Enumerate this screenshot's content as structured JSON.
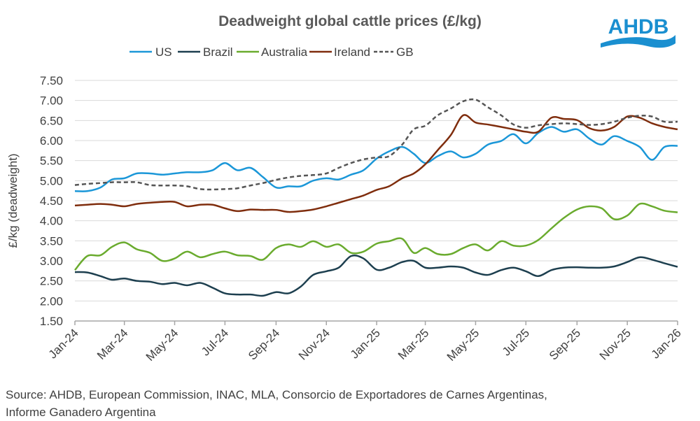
{
  "chart_data": {
    "type": "line",
    "title": "Deadweight global cattle prices (£/kg)",
    "ylabel": "£/kg (deadweight)",
    "xlabel": "",
    "ylim": [
      1.5,
      7.5
    ],
    "yticks": [
      "1.50",
      "2.00",
      "2.50",
      "3.00",
      "3.50",
      "4.00",
      "4.50",
      "5.00",
      "5.50",
      "6.00",
      "6.50",
      "7.00",
      "7.50"
    ],
    "xticks": [
      "Jan-24",
      "Mar-24",
      "May-24",
      "Jul-24",
      "Sep-24",
      "Nov-24",
      "Jan-25",
      "Mar-25",
      "May-25",
      "Jul-25",
      "Sep-25",
      "Nov-25",
      "Jan-26"
    ],
    "xtick_dates": [
      "2024-01-01",
      "2024-03-01",
      "2024-05-01",
      "2024-07-01",
      "2024-09-01",
      "2024-11-01",
      "2025-01-01",
      "2025-03-01",
      "2025-05-01",
      "2025-07-01",
      "2025-09-01",
      "2025-11-01",
      "2026-01-01"
    ],
    "grid": "horizontal",
    "legend_position": "top",
    "x": [
      "2024-01-01",
      "2024-01-16",
      "2024-02-01",
      "2024-02-15",
      "2024-03-01",
      "2024-03-16",
      "2024-04-01",
      "2024-04-16",
      "2024-05-01",
      "2024-05-16",
      "2024-06-01",
      "2024-06-16",
      "2024-07-01",
      "2024-07-16",
      "2024-08-01",
      "2024-08-16",
      "2024-09-01",
      "2024-09-16",
      "2024-10-01",
      "2024-10-16",
      "2024-11-01",
      "2024-11-16",
      "2024-12-01",
      "2024-12-16",
      "2025-01-01",
      "2025-01-16",
      "2025-02-01",
      "2025-02-15",
      "2025-03-01",
      "2025-03-16",
      "2025-04-01",
      "2025-04-16",
      "2025-05-01",
      "2025-05-16",
      "2025-06-01",
      "2025-06-16",
      "2025-07-01",
      "2025-07-16",
      "2025-08-01",
      "2025-08-16",
      "2025-09-01",
      "2025-09-16",
      "2025-10-01",
      "2025-10-16",
      "2025-11-01",
      "2025-11-16",
      "2025-12-01",
      "2025-12-16",
      "2026-01-01"
    ],
    "series": [
      {
        "name": "US",
        "color": "#1b97d8",
        "dash": false,
        "values": [
          4.74,
          4.74,
          4.83,
          5.03,
          5.06,
          5.18,
          5.18,
          5.15,
          5.18,
          5.21,
          5.21,
          5.26,
          5.44,
          5.26,
          5.32,
          5.09,
          4.83,
          4.86,
          4.86,
          5.0,
          5.06,
          5.03,
          5.15,
          5.26,
          5.55,
          5.73,
          5.84,
          5.67,
          5.44,
          5.61,
          5.73,
          5.58,
          5.67,
          5.9,
          5.99,
          6.16,
          5.93,
          6.19,
          6.34,
          6.22,
          6.28,
          6.05,
          5.9,
          6.11,
          5.99,
          5.84,
          5.52,
          5.84,
          5.87
        ]
      },
      {
        "name": "Brazil",
        "color": "#1d3f4f",
        "dash": false,
        "values": [
          2.72,
          2.71,
          2.62,
          2.53,
          2.56,
          2.5,
          2.48,
          2.42,
          2.45,
          2.39,
          2.45,
          2.33,
          2.19,
          2.16,
          2.16,
          2.13,
          2.22,
          2.19,
          2.36,
          2.65,
          2.74,
          2.83,
          3.12,
          3.06,
          2.78,
          2.83,
          2.97,
          3.0,
          2.83,
          2.83,
          2.86,
          2.83,
          2.71,
          2.65,
          2.77,
          2.83,
          2.74,
          2.62,
          2.77,
          2.83,
          2.84,
          2.83,
          2.83,
          2.86,
          2.97,
          3.09,
          3.03,
          2.94,
          2.85
        ]
      },
      {
        "name": "Australia",
        "color": "#6aab2e",
        "dash": false,
        "values": [
          2.77,
          3.12,
          3.14,
          3.35,
          3.46,
          3.29,
          3.2,
          3.0,
          3.06,
          3.23,
          3.09,
          3.17,
          3.23,
          3.14,
          3.12,
          3.03,
          3.32,
          3.41,
          3.35,
          3.49,
          3.35,
          3.41,
          3.2,
          3.23,
          3.43,
          3.49,
          3.55,
          3.2,
          3.32,
          3.17,
          3.17,
          3.32,
          3.41,
          3.26,
          3.49,
          3.38,
          3.38,
          3.52,
          3.81,
          4.07,
          4.28,
          4.36,
          4.31,
          4.04,
          4.13,
          4.42,
          4.36,
          4.25,
          4.21
        ]
      },
      {
        "name": "Ireland",
        "color": "#7f2d0d",
        "dash": false,
        "values": [
          4.38,
          4.4,
          4.42,
          4.4,
          4.36,
          4.42,
          4.45,
          4.47,
          4.47,
          4.36,
          4.4,
          4.4,
          4.31,
          4.24,
          4.28,
          4.27,
          4.27,
          4.22,
          4.24,
          4.28,
          4.36,
          4.45,
          4.54,
          4.63,
          4.77,
          4.86,
          5.06,
          5.18,
          5.41,
          5.76,
          6.14,
          6.63,
          6.45,
          6.4,
          6.34,
          6.28,
          6.22,
          6.22,
          6.57,
          6.54,
          6.51,
          6.31,
          6.25,
          6.34,
          6.6,
          6.57,
          6.43,
          6.34,
          6.28
        ]
      },
      {
        "name": "GB",
        "color": "#555555",
        "dash": true,
        "values": [
          4.89,
          4.92,
          4.94,
          4.96,
          4.96,
          4.96,
          4.89,
          4.88,
          4.88,
          4.86,
          4.79,
          4.78,
          4.79,
          4.81,
          4.88,
          4.94,
          5.02,
          5.08,
          5.12,
          5.14,
          5.18,
          5.32,
          5.44,
          5.53,
          5.58,
          5.61,
          5.9,
          6.28,
          6.37,
          6.63,
          6.8,
          6.98,
          7.02,
          6.83,
          6.63,
          6.4,
          6.32,
          6.38,
          6.41,
          6.43,
          6.41,
          6.39,
          6.41,
          6.47,
          6.57,
          6.62,
          6.6,
          6.47,
          6.47
        ]
      }
    ]
  },
  "logo": {
    "text": "AHDB",
    "color": "#1a8fd0"
  },
  "source": "Source: AHDB, European Commission, INAC, MLA, Consorcio de Exportadores de Carnes Argentinas,  Informe Ganadero Argentina"
}
